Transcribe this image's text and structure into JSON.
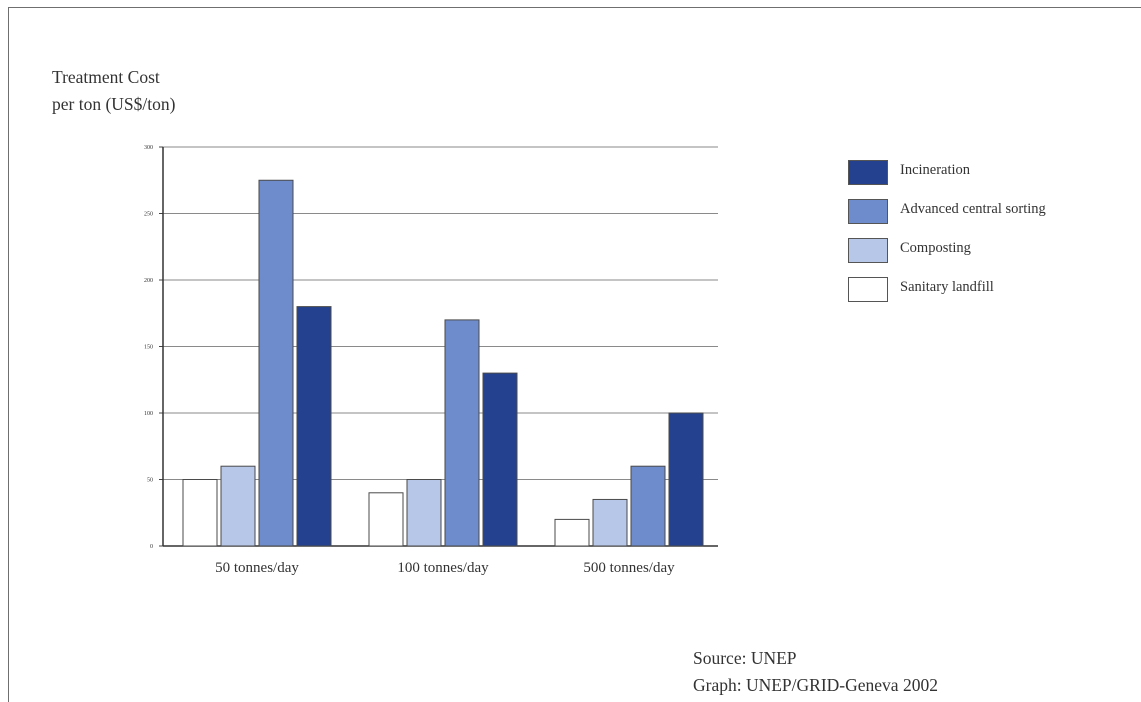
{
  "chart_data": {
    "type": "bar",
    "title": "",
    "ylabel_lines": [
      "Treatment Cost",
      "per ton (US$/ton)"
    ],
    "xlabel": "",
    "categories": [
      "50 tonnes/day",
      "100 tonnes/day",
      "500 tonnes/day"
    ],
    "ylim": [
      0,
      300
    ],
    "yticks": [
      0,
      50,
      100,
      150,
      200,
      250,
      300
    ],
    "grid": true,
    "legend_position": "right",
    "series": [
      {
        "name": "Sanitary landfill",
        "color": "#ffffff",
        "values": [
          50,
          40,
          20
        ]
      },
      {
        "name": "Composting",
        "color": "#b7c7e8",
        "values": [
          60,
          50,
          35
        ]
      },
      {
        "name": "Advanced central sorting",
        "color": "#6e8ccb",
        "values": [
          275,
          170,
          60
        ]
      },
      {
        "name": "Incineration",
        "color": "#24418f",
        "values": [
          180,
          130,
          100
        ]
      }
    ],
    "legend_order": [
      "Incineration",
      "Advanced central sorting",
      "Composting",
      "Sanitary landfill"
    ]
  },
  "source": {
    "line1": "Source: UNEP",
    "line2": "Graph: UNEP/GRID-Geneva 2002"
  }
}
